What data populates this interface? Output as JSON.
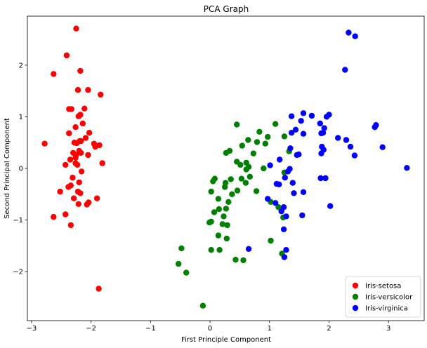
{
  "chart_data": {
    "type": "scatter",
    "title": "PCA Graph",
    "xlabel": "First Principle Component",
    "ylabel": "Second Principal Component",
    "xlim": [
      -3.07,
      3.6
    ],
    "ylim": [
      -2.95,
      2.95
    ],
    "xticks": [
      -3,
      -2,
      -1,
      0,
      1,
      2,
      3
    ],
    "yticks": [
      -2,
      -1,
      0,
      1,
      2
    ],
    "grid": false,
    "legend": "bottom-right",
    "series": [
      {
        "name": "Iris-setosa",
        "color": "#ff0000",
        "points": [
          [
            -2.25,
            2.71
          ],
          [
            -2.41,
            2.19
          ],
          [
            -2.63,
            1.83
          ],
          [
            -2.18,
            1.89
          ],
          [
            -2.22,
            1.52
          ],
          [
            -2.05,
            1.52
          ],
          [
            -1.84,
            1.43
          ],
          [
            -2.33,
            1.15
          ],
          [
            -2.37,
            1.15
          ],
          [
            -2.11,
            1.16
          ],
          [
            -2.18,
            1.04
          ],
          [
            -2.21,
            1.01
          ],
          [
            -2.14,
            0.87
          ],
          [
            -2.26,
            0.8
          ],
          [
            -2.37,
            0.68
          ],
          [
            -2.03,
            0.69
          ],
          [
            -2.09,
            0.59
          ],
          [
            -2.28,
            0.5
          ],
          [
            -2.24,
            0.49
          ],
          [
            -2.19,
            0.53
          ],
          [
            -2.17,
            0.53
          ],
          [
            -1.95,
            0.48
          ],
          [
            -2.78,
            0.48
          ],
          [
            -1.86,
            0.45
          ],
          [
            -1.93,
            0.42
          ],
          [
            -2.2,
            0.34
          ],
          [
            -2.3,
            0.3
          ],
          [
            -2.25,
            0.26
          ],
          [
            -2.17,
            0.3
          ],
          [
            -2.05,
            0.26
          ],
          [
            -2.26,
            0.21
          ],
          [
            -2.35,
            0.17
          ],
          [
            -2.26,
            0.1
          ],
          [
            -2.43,
            0.07
          ],
          [
            -2.23,
            0.07
          ],
          [
            -1.81,
            0.1
          ],
          [
            -2.16,
            -0.06
          ],
          [
            -2.31,
            -0.18
          ],
          [
            -2.2,
            -0.27
          ],
          [
            -2.38,
            -0.36
          ],
          [
            -2.34,
            -0.33
          ],
          [
            -2.52,
            -0.45
          ],
          [
            -2.22,
            -0.45
          ],
          [
            -2.18,
            -0.48
          ],
          [
            -2.29,
            -0.58
          ],
          [
            -1.9,
            -0.58
          ],
          [
            -2.04,
            -0.66
          ],
          [
            -2.21,
            -0.69
          ],
          [
            -2.07,
            -0.7
          ],
          [
            -2.63,
            -0.94
          ],
          [
            -2.43,
            -0.89
          ],
          [
            -2.34,
            -1.1
          ],
          [
            -1.87,
            -2.33
          ]
        ]
      },
      {
        "name": "Iris-versicolor",
        "color": "#008000",
        "points": [
          [
            0.45,
            0.85
          ],
          [
            1.1,
            0.86
          ],
          [
            0.83,
            0.71
          ],
          [
            0.97,
            0.61
          ],
          [
            0.64,
            0.55
          ],
          [
            0.79,
            0.51
          ],
          [
            0.93,
            0.48
          ],
          [
            1.25,
            0.62
          ],
          [
            0.54,
            0.44
          ],
          [
            0.73,
            0.29
          ],
          [
            0.33,
            0.34
          ],
          [
            1.33,
            0.33
          ],
          [
            0.27,
            0.3
          ],
          [
            0.45,
            0.13
          ],
          [
            0.61,
            0.11
          ],
          [
            0.51,
            0.07
          ],
          [
            0.65,
            0.03
          ],
          [
            0.61,
            -0.02
          ],
          [
            0.9,
            0.0
          ],
          [
            0.08,
            -0.2
          ],
          [
            0.05,
            -0.25
          ],
          [
            0.53,
            -0.2
          ],
          [
            0.35,
            -0.21
          ],
          [
            0.67,
            -0.16
          ],
          [
            0.6,
            -0.28
          ],
          [
            0.26,
            -0.28
          ],
          [
            0.25,
            -0.36
          ],
          [
            0.46,
            -0.43
          ],
          [
            1.25,
            -0.08
          ],
          [
            0.02,
            -0.45
          ],
          [
            0.78,
            -0.44
          ],
          [
            0.37,
            -0.5
          ],
          [
            0.14,
            -0.59
          ],
          [
            0.31,
            -0.65
          ],
          [
            1.02,
            -0.65
          ],
          [
            0.15,
            -0.79
          ],
          [
            0.27,
            -0.78
          ],
          [
            0.07,
            -0.85
          ],
          [
            0.02,
            -1.03
          ],
          [
            -0.01,
            -1.05
          ],
          [
            0.23,
            -0.93
          ],
          [
            1.15,
            -0.75
          ],
          [
            1.23,
            -0.95
          ],
          [
            0.21,
            -1.08
          ],
          [
            0.29,
            -1.1
          ],
          [
            0.14,
            -1.3
          ],
          [
            0.28,
            -1.36
          ],
          [
            0.02,
            -1.58
          ],
          [
            0.16,
            -1.58
          ],
          [
            -0.48,
            -1.55
          ],
          [
            1.02,
            -1.4
          ],
          [
            0.43,
            -1.77
          ],
          [
            0.56,
            -1.78
          ],
          [
            1.21,
            -1.65
          ],
          [
            -0.53,
            -1.85
          ],
          [
            -0.4,
            -2.02
          ],
          [
            -0.12,
            -2.66
          ]
        ]
      },
      {
        "name": "Iris-virginica",
        "color": "#0000ff",
        "points": [
          [
            2.33,
            2.63
          ],
          [
            2.44,
            2.56
          ],
          [
            2.27,
            1.91
          ],
          [
            1.57,
            1.07
          ],
          [
            1.71,
            1.02
          ],
          [
            1.96,
            1.0
          ],
          [
            2.0,
            1.04
          ],
          [
            1.37,
            1.01
          ],
          [
            1.53,
            0.92
          ],
          [
            1.85,
            0.87
          ],
          [
            1.92,
            0.78
          ],
          [
            1.44,
            0.75
          ],
          [
            1.37,
            0.69
          ],
          [
            1.87,
            0.68
          ],
          [
            1.9,
            0.69
          ],
          [
            1.57,
            0.67
          ],
          [
            2.15,
            0.59
          ],
          [
            2.29,
            0.55
          ],
          [
            2.77,
            0.8
          ],
          [
            2.79,
            0.84
          ],
          [
            2.9,
            0.41
          ],
          [
            2.36,
            0.42
          ],
          [
            1.35,
            0.39
          ],
          [
            1.88,
            0.42
          ],
          [
            1.91,
            0.36
          ],
          [
            1.87,
            0.29
          ],
          [
            1.46,
            0.26
          ],
          [
            1.49,
            0.27
          ],
          [
            2.43,
            0.25
          ],
          [
            1.17,
            0.17
          ],
          [
            3.31,
            0.01
          ],
          [
            1.01,
            0.06
          ],
          [
            1.34,
            -0.01
          ],
          [
            1.31,
            -0.06
          ],
          [
            1.26,
            -0.18
          ],
          [
            1.12,
            -0.3
          ],
          [
            1.16,
            -0.31
          ],
          [
            1.39,
            -0.28
          ],
          [
            1.41,
            -0.48
          ],
          [
            1.57,
            -0.46
          ],
          [
            1.94,
            -0.19
          ],
          [
            1.86,
            -0.19
          ],
          [
            1.24,
            -0.75
          ],
          [
            0.97,
            -0.59
          ],
          [
            1.1,
            -0.67
          ],
          [
            1.2,
            -0.83
          ],
          [
            1.28,
            -0.93
          ],
          [
            1.55,
            -0.91
          ],
          [
            2.02,
            -0.73
          ],
          [
            1.24,
            -1.18
          ],
          [
            1.28,
            -1.58
          ],
          [
            0.65,
            -1.56
          ],
          [
            1.25,
            -1.72
          ]
        ]
      }
    ]
  }
}
